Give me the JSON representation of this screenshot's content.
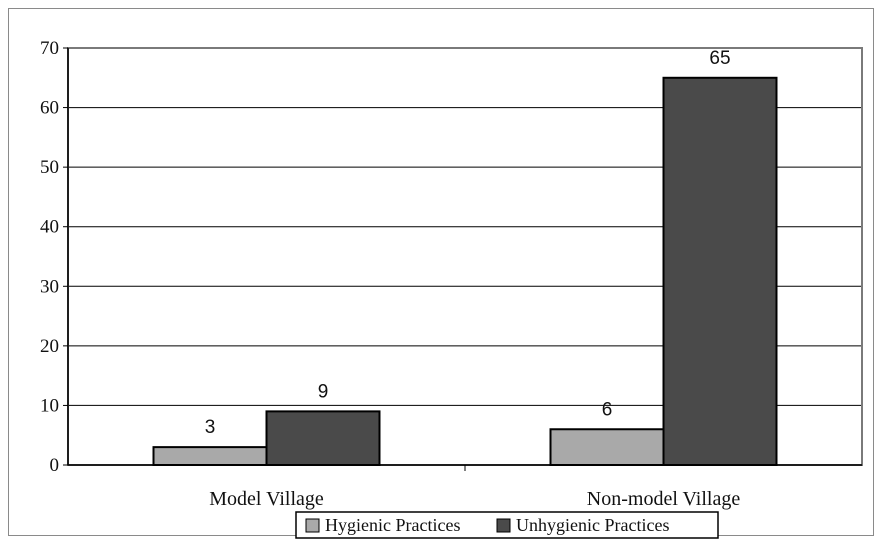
{
  "chart_data": {
    "type": "bar",
    "title": "",
    "xlabel": "",
    "ylabel": "",
    "categories": [
      "Model Village",
      "Non-model Village"
    ],
    "series": [
      {
        "name": "Hygienic Practices",
        "values": [
          3,
          6
        ],
        "color": "#a9a9a9"
      },
      {
        "name": "Unhygienic Practices",
        "values": [
          9,
          65
        ],
        "color": "#4a4a4a"
      }
    ],
    "ylim": [
      0,
      70
    ],
    "yticks": [
      0,
      10,
      20,
      30,
      40,
      50,
      60,
      70
    ],
    "grid": true,
    "data_labels": true,
    "legend_position": "bottom-center"
  }
}
